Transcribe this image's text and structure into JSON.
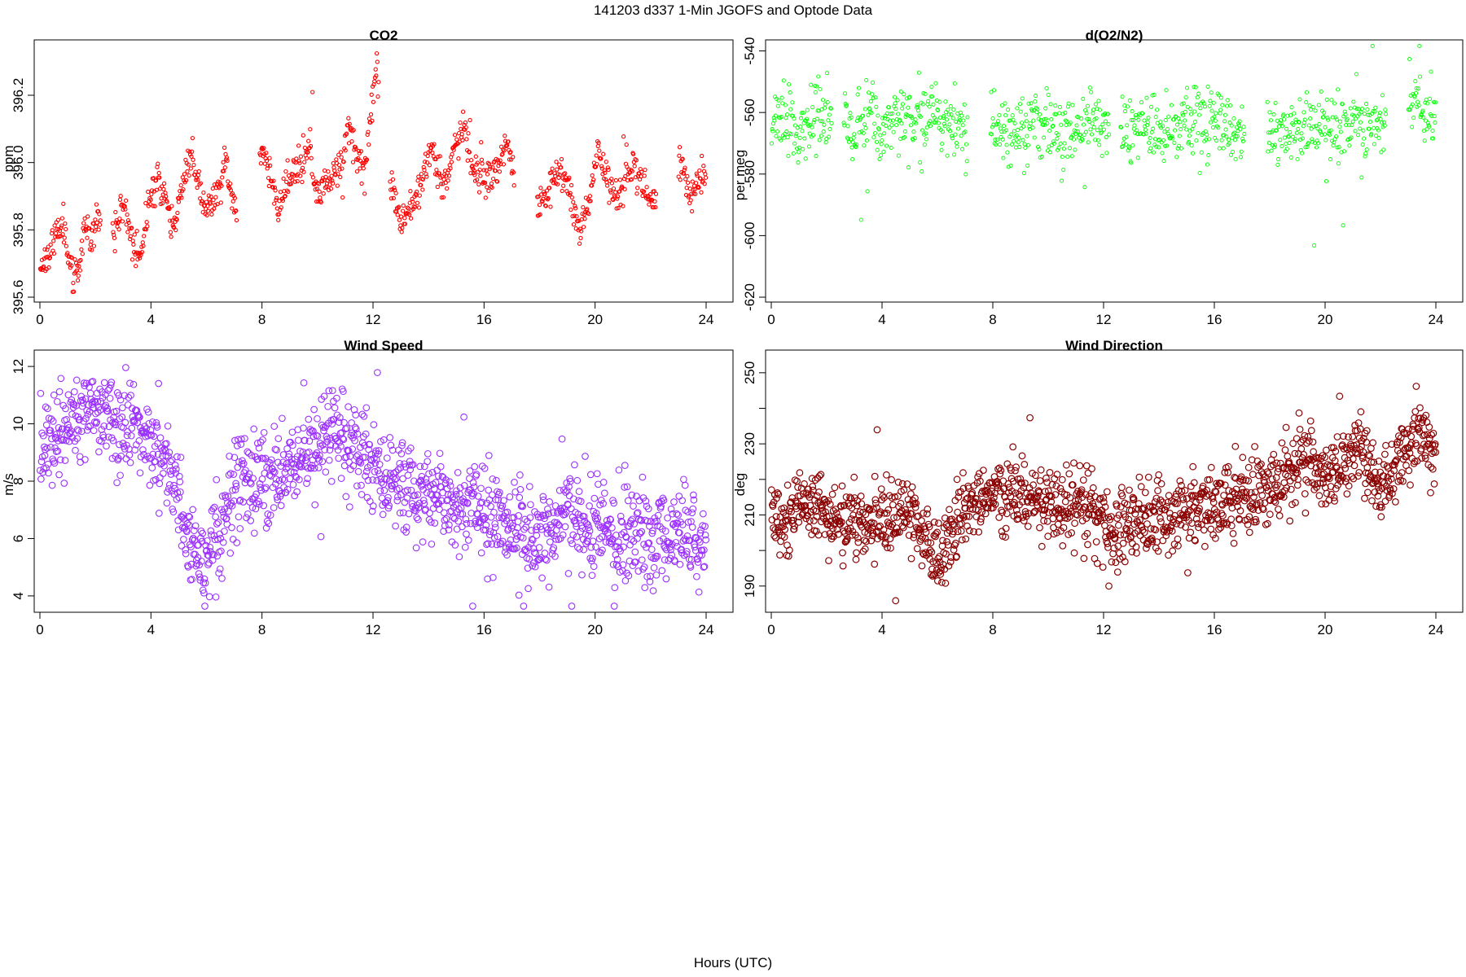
{
  "figure": {
    "title": "141203   d337   1-Min  JGOFS and Optode Data",
    "xlabel": "Hours (UTC)"
  },
  "chart_data": [
    {
      "type": "scatter",
      "title": "CO2",
      "xlabel": "",
      "ylabel": "ppm",
      "xlim": [
        0,
        24
      ],
      "ylim": [
        395.6,
        396.35
      ],
      "xticks": [
        0,
        4,
        8,
        12,
        16,
        20,
        24
      ],
      "yticks": [
        395.6,
        395.8,
        396.0,
        396.2
      ],
      "ytick_labels": [
        "395.6",
        "395.8",
        "396.0",
        "396.2"
      ],
      "color": "#ff0000",
      "marker_size": "small",
      "grid": false,
      "gaps": [
        [
          2.2,
          2.6
        ],
        [
          7.1,
          7.9
        ],
        [
          12.2,
          12.6
        ],
        [
          17.1,
          17.9
        ],
        [
          22.2,
          23.0
        ]
      ],
      "series": [
        {
          "x": [
            0,
            0.5,
            0.8,
            1.0,
            1.2,
            1.4,
            1.6,
            1.8,
            2.1,
            2.7,
            3.0,
            3.3,
            3.6,
            3.9,
            4.2,
            4.5,
            4.8,
            5.2,
            5.5,
            5.8,
            6.1,
            6.4,
            6.7,
            7.0,
            8.0,
            8.3,
            8.6,
            8.9,
            9.3,
            9.7,
            10.0,
            10.3,
            10.6,
            10.9,
            11.1,
            11.4,
            11.7,
            12.1,
            12.7,
            13.0,
            13.4,
            13.8,
            14.1,
            14.5,
            14.9,
            15.3,
            15.6,
            16.0,
            16.4,
            16.8,
            17.0,
            18.0,
            18.4,
            18.8,
            19.1,
            19.5,
            19.8,
            20.1,
            20.4,
            20.7,
            21.0,
            21.4,
            21.8,
            22.1,
            23.1,
            23.5,
            23.9
          ],
          "y": [
            395.69,
            395.76,
            395.84,
            395.75,
            395.64,
            395.68,
            395.83,
            395.78,
            395.84,
            395.79,
            395.89,
            395.77,
            395.72,
            395.86,
            395.96,
            395.9,
            395.8,
            395.95,
            396.03,
            395.9,
            395.86,
            395.92,
            396.0,
            395.86,
            396.05,
            395.96,
            395.86,
            395.94,
            395.98,
            396.04,
            395.9,
            395.94,
            395.98,
            396.0,
            396.12,
            396.02,
            395.98,
            396.28,
            395.92,
            395.82,
            395.88,
            395.96,
            396.05,
            395.92,
            396.04,
            396.1,
            395.98,
            395.96,
            395.98,
            396.05,
            396.0,
            395.86,
            395.94,
            395.97,
            395.9,
            395.8,
            395.88,
            396.05,
            395.96,
            395.9,
            395.92,
            396.0,
            395.92,
            395.88,
            396.0,
            395.9,
            395.97
          ]
        }
      ]
    },
    {
      "type": "scatter",
      "title": "d(O2/N2)",
      "xlabel": "",
      "ylabel": "per meg",
      "xlim": [
        0,
        24
      ],
      "ylim": [
        -620,
        -538
      ],
      "xticks": [
        0,
        4,
        8,
        12,
        16,
        20,
        24
      ],
      "yticks": [
        -620,
        -600,
        -580,
        -560,
        -540
      ],
      "ytick_labels": [
        "-620",
        "-600",
        "-580",
        "-560",
        "-540"
      ],
      "color": "#00ff00",
      "marker_size": "small",
      "grid": false,
      "gaps": [
        [
          2.2,
          2.6
        ],
        [
          7.1,
          7.9
        ],
        [
          12.2,
          12.6
        ],
        [
          17.1,
          17.9
        ],
        [
          22.2,
          23.0
        ]
      ],
      "series": [
        {
          "x": [
            0,
            0.5,
            1.0,
            1.5,
            2.0,
            2.7,
            3.0,
            3.5,
            4.0,
            4.5,
            5.0,
            5.5,
            6.0,
            6.5,
            7.0,
            8.0,
            8.5,
            9.0,
            9.5,
            10.0,
            10.5,
            11.0,
            11.5,
            12.0,
            12.7,
            13.2,
            13.7,
            14.2,
            14.7,
            15.2,
            15.7,
            16.2,
            16.7,
            17.0,
            18.0,
            18.5,
            19.0,
            19.5,
            20.0,
            20.5,
            21.0,
            21.5,
            22.0,
            23.2,
            23.5,
            23.9
          ],
          "y": [
            -564,
            -563,
            -565,
            -562,
            -561,
            -563,
            -567,
            -560,
            -565,
            -560,
            -562,
            -563,
            -563,
            -564,
            -565,
            -562,
            -566,
            -563,
            -565,
            -564,
            -567,
            -566,
            -565,
            -563,
            -566,
            -565,
            -566,
            -565,
            -565,
            -564,
            -566,
            -565,
            -566,
            -565,
            -567,
            -566,
            -565,
            -565,
            -566,
            -565,
            -563,
            -564,
            -565,
            -555,
            -565,
            -563
          ]
        }
      ]
    },
    {
      "type": "scatter",
      "title": "Wind Speed",
      "xlabel": "",
      "ylabel": "m/s",
      "xlim": [
        0,
        24
      ],
      "ylim": [
        3.6,
        12.4
      ],
      "xticks": [
        0,
        4,
        8,
        12,
        16,
        20,
        24
      ],
      "yticks": [
        4,
        6,
        8,
        10,
        12
      ],
      "ytick_labels": [
        "4",
        "6",
        "8",
        "10",
        "12"
      ],
      "color": "#9b30ff",
      "marker_size": "large",
      "grid": false,
      "gaps": [],
      "series": [
        {
          "x": [
            0,
            0.5,
            1.0,
            1.5,
            2.0,
            2.5,
            3.0,
            3.5,
            4.0,
            4.5,
            5.0,
            5.3,
            5.7,
            6.0,
            6.3,
            6.7,
            7.0,
            7.5,
            8.0,
            8.5,
            9.0,
            9.5,
            10.0,
            10.5,
            11.0,
            11.5,
            12.0,
            12.5,
            13.0,
            13.5,
            14.0,
            14.5,
            15.0,
            15.5,
            16.0,
            16.5,
            17.0,
            17.5,
            18.0,
            18.5,
            19.0,
            19.5,
            20.0,
            20.5,
            21.0,
            21.5,
            22.0,
            22.5,
            23.0,
            23.5,
            23.9
          ],
          "y": [
            9.2,
            9.4,
            9.8,
            10.6,
            10.5,
            9.9,
            9.6,
            10.1,
            9.0,
            8.8,
            7.5,
            6.0,
            5.3,
            5.5,
            6.0,
            6.6,
            7.6,
            8.3,
            8.0,
            8.2,
            8.4,
            8.8,
            9.5,
            9.8,
            9.6,
            9.3,
            8.7,
            8.0,
            7.8,
            7.6,
            7.7,
            7.5,
            7.3,
            7.0,
            6.9,
            6.5,
            6.2,
            6.0,
            6.1,
            6.3,
            6.8,
            6.7,
            6.4,
            6.1,
            6.0,
            6.2,
            6.0,
            6.0,
            6.3,
            6.2,
            5.7
          ]
        }
      ]
    },
    {
      "type": "scatter",
      "title": "Wind Direction",
      "xlabel": "",
      "ylabel": "deg",
      "xlim": [
        0,
        24
      ],
      "ylim": [
        184,
        255
      ],
      "xticks": [
        0,
        4,
        8,
        12,
        16,
        20,
        24
      ],
      "yticks": [
        190,
        210,
        230,
        250
      ],
      "ytick_labels": [
        "190",
        "210",
        "230",
        "250"
      ],
      "minor_yticks": [
        200,
        220,
        240
      ],
      "color": "#8b0000",
      "marker_size": "large",
      "grid": false,
      "gaps": [],
      "series": [
        {
          "x": [
            0,
            0.5,
            1.0,
            1.5,
            2.0,
            2.5,
            3.0,
            3.5,
            4.0,
            4.5,
            5.0,
            5.5,
            5.8,
            6.1,
            6.5,
            7.0,
            7.5,
            8.0,
            8.5,
            9.0,
            9.5,
            10.0,
            10.5,
            11.0,
            11.5,
            12.0,
            12.5,
            13.0,
            13.5,
            14.0,
            14.5,
            15.0,
            15.5,
            16.0,
            16.5,
            17.0,
            17.5,
            18.0,
            18.5,
            19.0,
            19.5,
            20.0,
            20.5,
            21.0,
            21.5,
            22.0,
            22.5,
            23.0,
            23.5,
            23.9
          ],
          "y": [
            210,
            208,
            212,
            213,
            210,
            208,
            210,
            208,
            209,
            210,
            211,
            206,
            200,
            199,
            206,
            212,
            214,
            218,
            215,
            216,
            215,
            213,
            213,
            212,
            211,
            207,
            206,
            208,
            208,
            209,
            210,
            211,
            212,
            213,
            214,
            215,
            216,
            219,
            221,
            225,
            226,
            220,
            222,
            228,
            226,
            216,
            225,
            230,
            233,
            228
          ]
        }
      ]
    }
  ]
}
